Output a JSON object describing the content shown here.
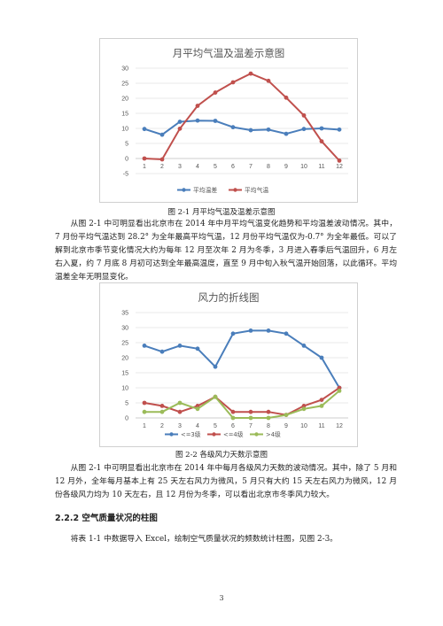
{
  "charts": [
    {
      "title": "月平均气温及温差示意图",
      "type": "line",
      "categories": [
        "1",
        "2",
        "3",
        "4",
        "5",
        "6",
        "7",
        "8",
        "9",
        "10",
        "11",
        "12"
      ],
      "y_ticks": [
        "-5",
        "0",
        "5",
        "10",
        "15",
        "20",
        "25",
        "30"
      ],
      "ylim": [
        -5,
        30
      ],
      "series": [
        {
          "name": "平均温差",
          "color": "#4a7ebb",
          "values": [
            9.8,
            7.9,
            12.2,
            12.6,
            12.5,
            10.4,
            9.4,
            9.6,
            8.2,
            9.8,
            10.0,
            9.6
          ]
        },
        {
          "name": "平均气温",
          "color": "#c0504d",
          "values": [
            0.0,
            -0.3,
            9.9,
            17.5,
            21.9,
            25.3,
            28.2,
            25.8,
            20.2,
            14.3,
            5.7,
            -0.7
          ]
        }
      ]
    },
    {
      "title": "风力的折线图",
      "type": "line",
      "categories": [
        "1",
        "2",
        "3",
        "4",
        "5",
        "6",
        "7",
        "8",
        "9",
        "10",
        "11",
        "12"
      ],
      "y_ticks": [
        "0",
        "5",
        "10",
        "15",
        "20",
        "25",
        "30",
        "35"
      ],
      "ylim": [
        0,
        35
      ],
      "series": [
        {
          "name": "<=3级",
          "color": "#4a7ebb",
          "values": [
            24,
            22,
            24,
            23,
            17,
            28,
            29,
            29,
            28,
            24,
            20,
            10
          ]
        },
        {
          "name": "<=4级",
          "color": "#c0504d",
          "values": [
            5,
            4,
            2,
            4,
            7,
            2,
            2,
            2,
            1,
            4,
            6,
            10
          ]
        },
        {
          "name": ">4级",
          "color": "#9bbb59",
          "values": [
            2,
            2,
            5,
            3,
            7,
            0,
            0,
            0,
            1,
            3,
            4,
            9
          ]
        }
      ]
    }
  ],
  "chart_data": [
    {
      "type": "line",
      "title": "月平均气温及温差示意图",
      "categories": [
        "1",
        "2",
        "3",
        "4",
        "5",
        "6",
        "7",
        "8",
        "9",
        "10",
        "11",
        "12"
      ],
      "ylim": [
        -5,
        30
      ],
      "series": [
        {
          "name": "平均温差",
          "values": [
            9.8,
            7.9,
            12.2,
            12.6,
            12.5,
            10.4,
            9.4,
            9.6,
            8.2,
            9.8,
            10.0,
            9.6
          ]
        },
        {
          "name": "平均气温",
          "values": [
            0.0,
            -0.3,
            9.9,
            17.5,
            21.9,
            25.3,
            28.2,
            25.8,
            20.2,
            14.3,
            5.7,
            -0.7
          ]
        }
      ],
      "legend": "bottom"
    },
    {
      "type": "line",
      "title": "风力的折线图",
      "categories": [
        "1",
        "2",
        "3",
        "4",
        "5",
        "6",
        "7",
        "8",
        "9",
        "10",
        "11",
        "12"
      ],
      "ylim": [
        0,
        35
      ],
      "series": [
        {
          "name": "<=3级",
          "values": [
            24,
            22,
            24,
            23,
            17,
            28,
            29,
            29,
            28,
            24,
            20,
            10
          ]
        },
        {
          "name": "<=4级",
          "values": [
            5,
            4,
            2,
            4,
            7,
            2,
            2,
            2,
            1,
            4,
            6,
            10
          ]
        },
        {
          "name": ">4级",
          "values": [
            2,
            2,
            5,
            3,
            7,
            0,
            0,
            0,
            1,
            3,
            4,
            9
          ]
        }
      ],
      "legend": "bottom"
    }
  ],
  "figure1_caption": "图 2-1 月平均气温及温差示意图",
  "paragraph1": "从图 2-1 中可明显看出北京市在 2014 年中月平均气温变化趋势和平均温差波动情况。其中，7 月份平均气温达到 28.2° 为全年最高平均气温，12 月份平均气温仅为-0.7° 为全年最低。可以了解到北京市季节变化情况大约为每年 12 月至次年 2 月为冬季，3 月进入春季后气温回升，6 月左右入夏，约 7 月底 8 月初可达到全年最高温度，直至 9 月中旬入秋气温开始回落，以此循环。平均温差全年无明显变化。",
  "figure2_caption": "图 2-2 各级风力天数示意图",
  "paragraph2": "从图 2-1 中可明显看出北京市在 2014 年中每月各级风力天数的波动情况。其中，除了 5 月和 12 月外，全年每月基本上有 25 天左右风力为微风，5 月只有大约 15 天左右风力为微风，12 月份各级风力均为 10 天左右，且 12 月份为冬季，可以看出北京市冬季风力较大。",
  "section_heading": "2.2.2 空气质量状况的柱图",
  "paragraph3": "将表 1-1 中数据导入 Excel，绘制空气质量状况的频数统计柱图，见图 2-3。",
  "page_number": "3"
}
